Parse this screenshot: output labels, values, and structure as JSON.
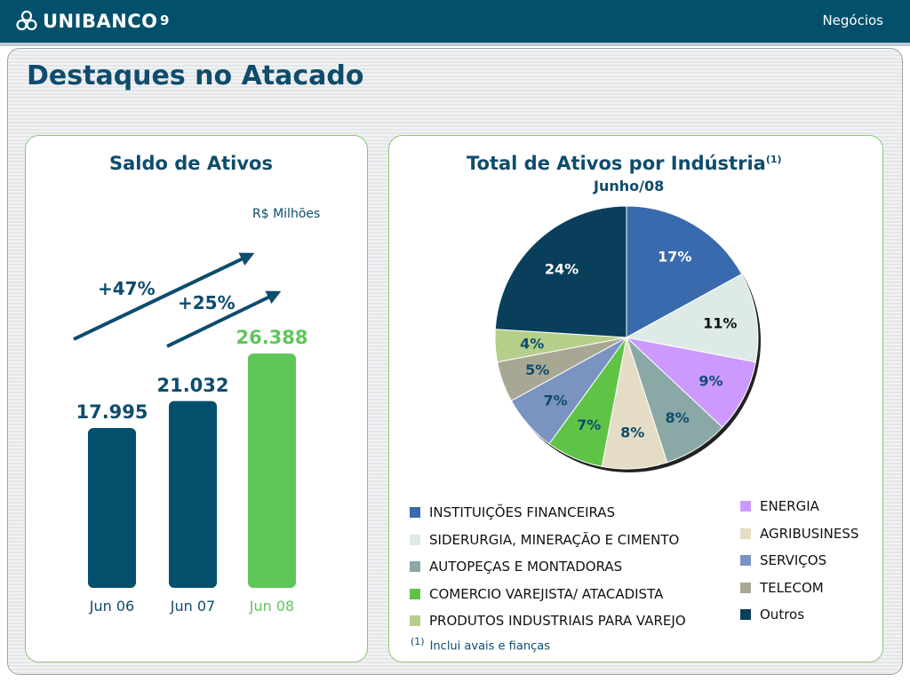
{
  "header": {
    "brand": "UNIBANCO",
    "page_number": "9",
    "section": "Negócios"
  },
  "title": "Destaques no Atacado",
  "colors": {
    "navy": "#02506b",
    "green": "#5fc65a"
  },
  "left_panel": {
    "title": "Saldo de Ativos",
    "unit": "R$ Milhões",
    "growth_labels": [
      "+47%",
      "+25%"
    ]
  },
  "right_panel": {
    "title": "Total de Ativos por Indústria",
    "title_sup": "(1)",
    "subtitle": "Junho/08",
    "footnote_mark": "(1)",
    "footnote": "Inclui avais e fianças"
  },
  "chart_data": [
    {
      "type": "bar",
      "title": "Saldo de Ativos",
      "categories": [
        "Jun 06",
        "Jun 07",
        "Jun 08"
      ],
      "values": [
        17995,
        21032,
        26388
      ],
      "value_labels": [
        "17.995",
        "21.032",
        "26.388"
      ],
      "colors": [
        "#02506b",
        "#02506b",
        "#5fc65a"
      ],
      "ylabel": "R$ Milhões",
      "ylim": [
        0,
        28000
      ],
      "grid": false
    },
    {
      "type": "pie",
      "title": "Total de Ativos por Indústria",
      "subtitle": "Junho/08",
      "legend_position": "bottom",
      "slices": [
        {
          "name": "INSTITUIÇÕES FINANCEIRAS",
          "value": 17,
          "label": "17%",
          "color": "#3a6aae",
          "label_color": "#ffffff"
        },
        {
          "name": "SIDERURGIA, MINERAÇÃO E CIMENTO",
          "value": 11,
          "label": "11%",
          "color": "#ddeae6",
          "label_color": "#111111"
        },
        {
          "name": "ENERGIA",
          "value": 9,
          "label": "9%",
          "color": "#cc99ff",
          "label_color": "#0e4c6d"
        },
        {
          "name": "AUTOPEÇAS E MONTADORAS",
          "value": 8,
          "label": "8%",
          "color": "#8aa8a6",
          "label_color": "#0e4c6d"
        },
        {
          "name": "AGRIBUSINESS",
          "value": 8,
          "label": "8%",
          "color": "#e5dcc5",
          "label_color": "#0e4c6d"
        },
        {
          "name": "COMERCIO VAREJISTA/ ATACADISTA",
          "value": 7,
          "label": "7%",
          "color": "#5fc446",
          "label_color": "#0e4c6d"
        },
        {
          "name": "SERVIÇOS",
          "value": 7,
          "label": "7%",
          "color": "#7a93c0",
          "label_color": "#0e4c6d"
        },
        {
          "name": "TELECOM",
          "value": 5,
          "label": "5%",
          "color": "#a8a793",
          "label_color": "#0e4c6d"
        },
        {
          "name": "PRODUTOS INDUSTRIAIS PARA VAREJO",
          "value": 4,
          "label": "4%",
          "color": "#b4cf8a",
          "label_color": "#0e4c6d"
        },
        {
          "name": "Outros",
          "value": 24,
          "label": "24%",
          "color": "#0a3f5c",
          "label_color": "#ffffff"
        }
      ]
    }
  ]
}
